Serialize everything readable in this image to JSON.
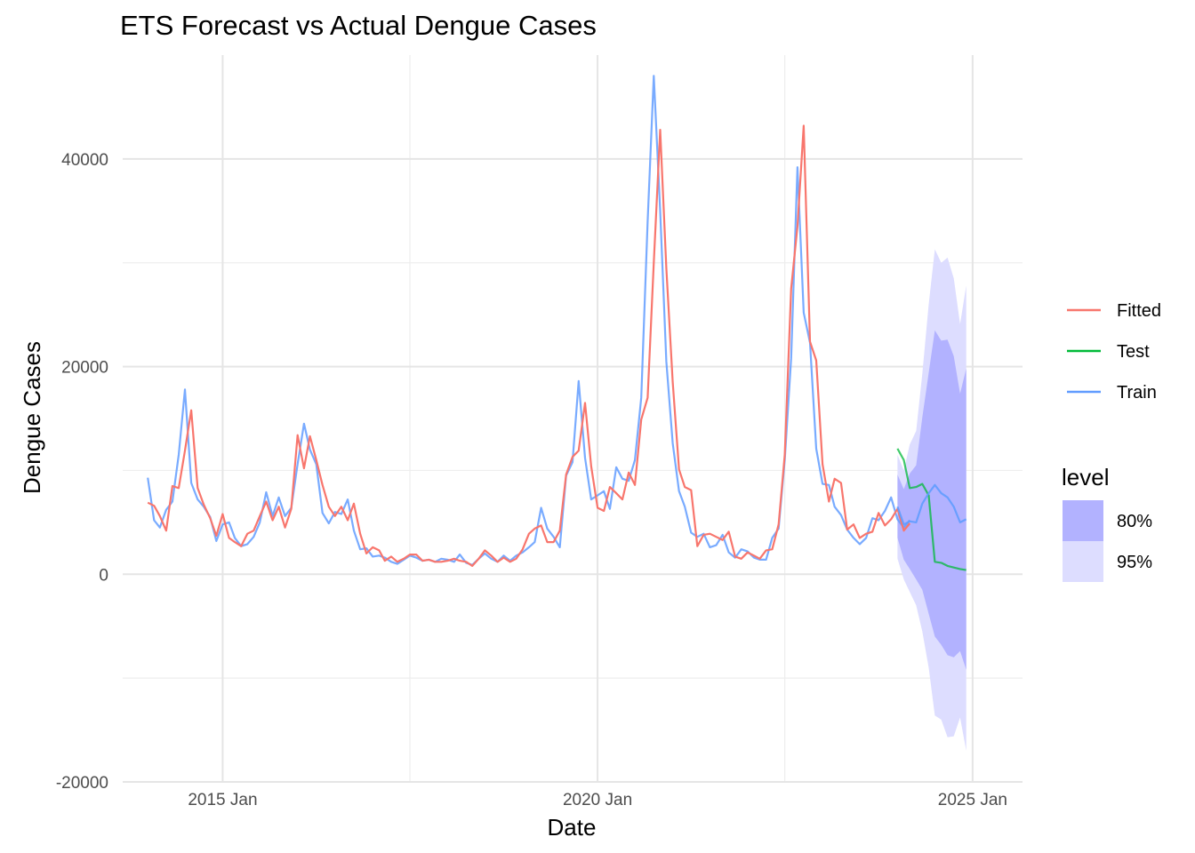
{
  "chart_data": {
    "type": "line",
    "title": "ETS Forecast vs Actual Dengue Cases",
    "xlabel": "Date",
    "ylabel": "Dengue Cases",
    "xlim": [
      "2013-09-01",
      "2025-09-01"
    ],
    "ylim": [
      -20000,
      50000
    ],
    "x_ticks": [
      {
        "date": "2015-01-01",
        "label": "2015 Jan"
      },
      {
        "date": "2020-01-01",
        "label": "2020 Jan"
      },
      {
        "date": "2025-01-01",
        "label": "2025 Jan"
      }
    ],
    "x_minor_ticks": [
      "2017-07-01",
      "2022-07-01"
    ],
    "y_ticks": [
      {
        "value": -20000,
        "label": "-20000"
      },
      {
        "value": 0,
        "label": "0"
      },
      {
        "value": 20000,
        "label": "20000"
      },
      {
        "value": 40000,
        "label": "40000"
      }
    ],
    "y_minor_ticks": [
      -10000,
      10000,
      30000
    ],
    "grid": true,
    "legend_position": "right",
    "series": [
      {
        "name": "Train",
        "color": "#619CFF",
        "start": "2014-01",
        "values": [
          9300,
          5200,
          4500,
          6200,
          7000,
          11500,
          17800,
          8800,
          7200,
          6500,
          5500,
          3200,
          4800,
          5000,
          3500,
          2700,
          2900,
          3600,
          5000,
          7900,
          5600,
          7400,
          5600,
          6400,
          10600,
          14500,
          12000,
          10600,
          5900,
          4900,
          6000,
          5800,
          7200,
          4200,
          2400,
          2500,
          1700,
          1800,
          1600,
          1200,
          1000,
          1400,
          1800,
          1600,
          1300,
          1400,
          1200,
          1500,
          1400,
          1200,
          1900,
          1100,
          900,
          1500,
          2000,
          1500,
          1200,
          1800,
          1300,
          1800,
          2100,
          2600,
          3100,
          6400,
          4400,
          3600,
          2600,
          9500,
          10800,
          18600,
          11200,
          7200,
          7600,
          8000,
          6300,
          10300,
          9200,
          9000,
          11000,
          17000,
          34000,
          48000,
          35000,
          20500,
          12600,
          8000,
          6500,
          4000,
          3600,
          3900,
          2600,
          2800,
          3800,
          2100,
          1600,
          2400,
          2200,
          1600,
          1400,
          1400,
          3500,
          4400,
          11000,
          20800,
          39200,
          25200,
          22300,
          12100,
          8700,
          8600,
          6500,
          5700,
          4300,
          3500,
          2900,
          3500,
          5400,
          5200,
          6100,
          7400,
          5300,
          4500,
          5200
        ]
      },
      {
        "name": "Fitted",
        "color": "#F8766D",
        "start": "2014-01",
        "values": [
          6900,
          6600,
          5600,
          4200,
          8500,
          8300,
          11900,
          15800,
          8300,
          6700,
          5400,
          3700,
          5800,
          3500,
          3100,
          2700,
          3900,
          4200,
          5600,
          7000,
          5200,
          6500,
          4500,
          6300,
          13400,
          10200,
          13300,
          11000,
          8600,
          6500,
          5600,
          6500,
          5200,
          6800,
          3900,
          2000,
          2600,
          2300,
          1300,
          1700,
          1200,
          1500,
          1900,
          1900,
          1300,
          1400,
          1200,
          1200,
          1300,
          1500,
          1300,
          1200,
          800,
          1500,
          2300,
          1800,
          1200,
          1600,
          1200,
          1500,
          2400,
          3900,
          4400,
          4700,
          3100,
          3100,
          4200,
          9600,
          11300,
          11900,
          16500,
          10400,
          6400,
          6100,
          8400,
          7800,
          7200,
          9800,
          8600,
          14900,
          17000,
          30000,
          42800,
          29500,
          18500,
          10100,
          8400,
          8100,
          2700,
          3800,
          3900,
          3600,
          3300,
          4100,
          1700,
          1500,
          2100,
          1800,
          1500,
          2300,
          2400,
          4800,
          11500,
          27500,
          33500,
          43200,
          22400,
          20600,
          10600,
          7000,
          9200,
          8800,
          4300,
          4800,
          3500,
          3900,
          4100,
          5900,
          4700,
          5300,
          6300,
          4200,
          4900
        ]
      },
      {
        "name": "Test",
        "color": "#00BA38",
        "start": "2024-01",
        "values": [
          12100,
          11000,
          8300,
          8400,
          8700,
          7600,
          1200,
          1100,
          800,
          650,
          500,
          400
        ]
      }
    ],
    "forecast": {
      "color": "#619CFF",
      "start": "2024-01",
      "mean": [
        6500,
        4800,
        5100,
        5000,
        6800,
        7800,
        8600,
        7800,
        7400,
        6500,
        5000,
        5300
      ],
      "bands": [
        {
          "level": "80%",
          "color": "#b2b2ff",
          "lower": [
            3500,
            1400,
            500,
            -500,
            -1500,
            -3800,
            -6000,
            -6800,
            -7800,
            -8000,
            -7400,
            -9200
          ],
          "upper": [
            9600,
            8200,
            9700,
            10500,
            15100,
            19400,
            23500,
            22500,
            22600,
            21000,
            17400,
            19800
          ]
        },
        {
          "level": "95%",
          "color": "#ddddff",
          "lower": [
            1500,
            -500,
            -1700,
            -3000,
            -5500,
            -9000,
            -13600,
            -14000,
            -15700,
            -15600,
            -13800,
            -17000
          ],
          "upper": [
            11500,
            10000,
            12500,
            13800,
            19300,
            26000,
            31300,
            30000,
            30500,
            28500,
            24100,
            27800
          ]
        }
      ]
    },
    "legend": {
      "lines": [
        "Fitted",
        "Test",
        "Train"
      ],
      "title": "level",
      "levels": [
        "80%",
        "95%"
      ]
    }
  }
}
